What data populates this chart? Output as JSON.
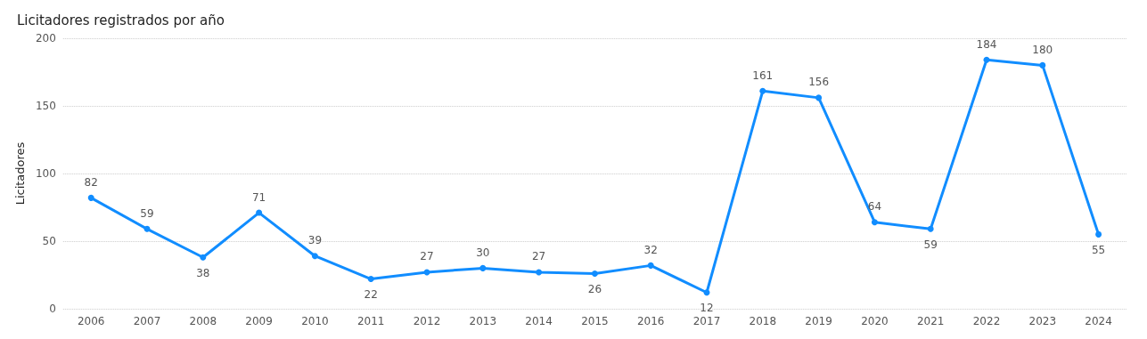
{
  "chart_data": {
    "type": "line",
    "title": "Licitadores registrados por año",
    "ylabel": "Licitadores",
    "categories": [
      "2006",
      "2007",
      "2008",
      "2009",
      "2010",
      "2011",
      "2012",
      "2013",
      "2014",
      "2015",
      "2016",
      "2017",
      "2018",
      "2019",
      "2020",
      "2021",
      "2022",
      "2023",
      "2024"
    ],
    "series": [
      {
        "color": "#118dff",
        "values": [
          82,
          59,
          38,
          71,
          39,
          22,
          27,
          30,
          27,
          26,
          32,
          12,
          161,
          156,
          64,
          59,
          184,
          180,
          55
        ]
      }
    ],
    "ylim": [
      0,
      200
    ],
    "yticks": [
      0,
      50,
      100,
      150,
      200
    ],
    "grid": "y",
    "marker": "circle",
    "line_style": "solid",
    "data_labels": true
  }
}
